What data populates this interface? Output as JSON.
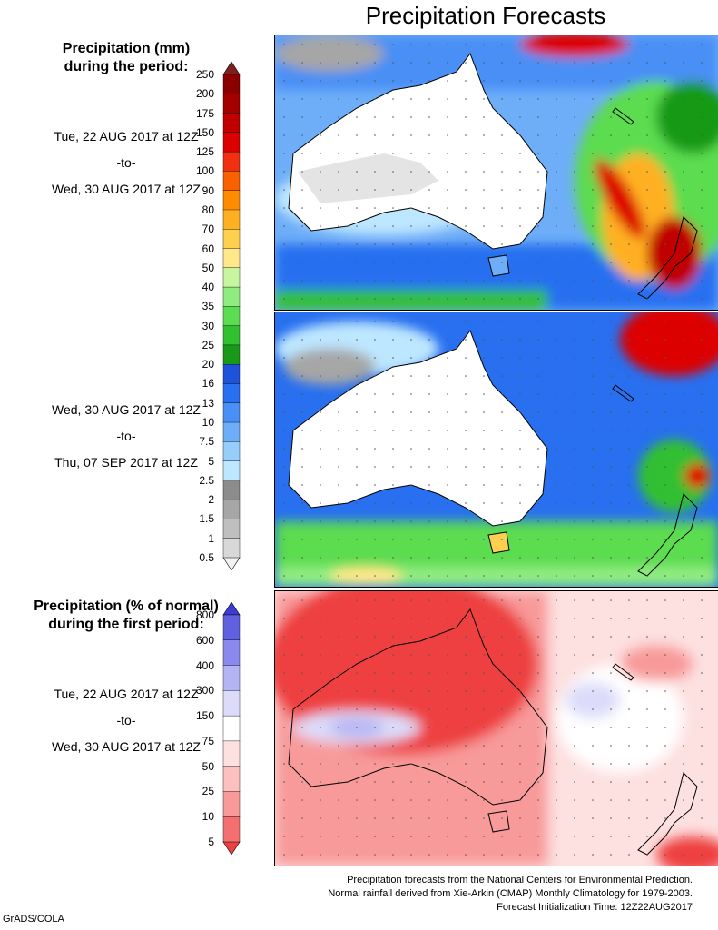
{
  "title": "Precipitation Forecasts",
  "precip_legend": {
    "heading_line1": "Precipitation (mm)",
    "heading_line2": "during the period:",
    "levels": [
      "250",
      "200",
      "175",
      "150",
      "125",
      "100",
      "90",
      "80",
      "70",
      "60",
      "50",
      "40",
      "35",
      "30",
      "25",
      "20",
      "16",
      "13",
      "10",
      "7.5",
      "5",
      "2.5",
      "2",
      "1.5",
      "1",
      "0.5"
    ],
    "colors": [
      "#7a2020",
      "#8a0000",
      "#a50000",
      "#c00000",
      "#dd0000",
      "#f03010",
      "#f86000",
      "#ff8c00",
      "#ffb020",
      "#ffd050",
      "#ffe88a",
      "#c8f5a0",
      "#90ec80",
      "#5cdc50",
      "#30c030",
      "#189a18",
      "#1e52d8",
      "#2870f0",
      "#4a8ff5",
      "#6eaef8",
      "#96cdfb",
      "#bde6ff",
      "#8c8c8c",
      "#a6a6a6",
      "#bfbfbf",
      "#d8d8d8",
      "#f2f2f2"
    ]
  },
  "period1": {
    "start": "Tue, 22 AUG 2017 at 12Z",
    "sep": "-to-",
    "end": "Wed, 30 AUG 2017 at 12Z"
  },
  "period2": {
    "start": "Wed, 30 AUG 2017 at 12Z",
    "sep": "-to-",
    "end": "Thu, 07 SEP 2017 at 12Z"
  },
  "anom_legend": {
    "heading_line1": "Precipitation (% of normal)",
    "heading_line2": "during the first period:",
    "levels": [
      "800",
      "600",
      "400",
      "300",
      "150",
      "75",
      "50",
      "25",
      "10",
      "5"
    ],
    "colors": [
      "#3c3cd0",
      "#6060e0",
      "#8a8aee",
      "#b4b4f4",
      "#dcdcfa",
      "#ffffff",
      "#fde0e0",
      "#fcc0c0",
      "#f89a9a",
      "#f47070",
      "#ee4040"
    ]
  },
  "period3": {
    "start": "Tue, 22 AUG 2017 at 12Z",
    "sep": "-to-",
    "end": "Wed, 30 AUG 2017 at 12Z"
  },
  "footer": {
    "line1": "Precipitation forecasts from the National Centers for Environmental Prediction.",
    "line2": "Normal rainfall derived from Xie-Arkin (CMAP) Monthly Climatology for 1979-2003.",
    "line3": "Forecast Initialization Time: 12Z22AUG2017"
  },
  "credit": "GrADS/COLA"
}
